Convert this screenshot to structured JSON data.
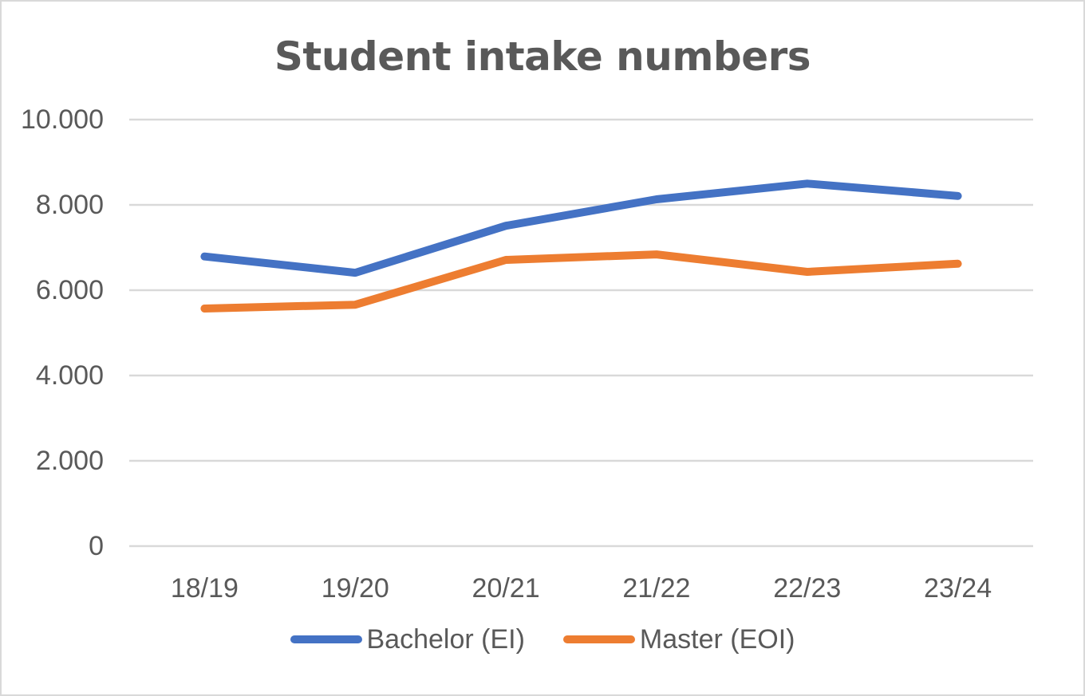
{
  "chart_data": {
    "type": "line",
    "title": "Student intake numbers",
    "xlabel": "",
    "ylabel": "",
    "categories": [
      "18/19",
      "19/20",
      "20/21",
      "21/22",
      "22/23",
      "23/24"
    ],
    "series": [
      {
        "name": "Bachelor (EI)",
        "color": "#4472c4",
        "values": [
          6790,
          6410,
          7510,
          8130,
          8500,
          8210
        ]
      },
      {
        "name": "Master (EOI)",
        "color": "#ed7d31",
        "values": [
          5570,
          5660,
          6710,
          6840,
          6430,
          6620
        ]
      }
    ],
    "ylim": [
      0,
      10000
    ],
    "yticks": [
      0,
      2000,
      4000,
      6000,
      8000,
      10000
    ],
    "ytick_labels": [
      "0",
      "2.000",
      "4.000",
      "6.000",
      "8.000",
      "10.000"
    ],
    "grid": true,
    "legend_position": "bottom"
  },
  "colors": {
    "gridline": "#d9d9d9",
    "text": "#595959",
    "border": "#d9d9d9"
  }
}
